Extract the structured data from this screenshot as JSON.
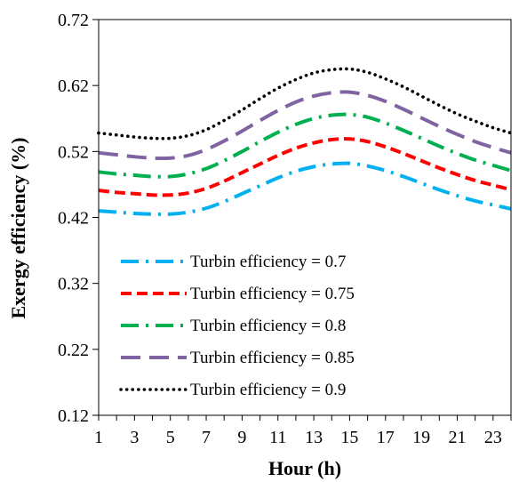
{
  "chart_data": {
    "type": "line",
    "xlabel": "Hour (h)",
    "ylabel": "Exergy efficiency (%)",
    "xlim": [
      1,
      24
    ],
    "ylim": [
      0.12,
      0.72
    ],
    "x_ticks": [
      1,
      3,
      5,
      7,
      9,
      11,
      13,
      15,
      17,
      19,
      21,
      23
    ],
    "y_ticks": [
      0.12,
      0.22,
      0.32,
      0.42,
      0.52,
      0.62,
      0.72
    ],
    "y_tick_labels": [
      "0.12",
      "0.22",
      "0.32",
      "0.42",
      "0.52",
      "0.62",
      "0.72"
    ],
    "grid": false,
    "legend_position": "bottom-left",
    "x": [
      1,
      2,
      3,
      4,
      5,
      6,
      7,
      8,
      9,
      10,
      11,
      12,
      13,
      14,
      15,
      16,
      17,
      18,
      19,
      20,
      21,
      22,
      23,
      24
    ],
    "series": [
      {
        "name": "Turbin efficiency = 0.7",
        "color": "#00B0F0",
        "dash": "long-dash-dot",
        "values": [
          0.43,
          0.428,
          0.426,
          0.425,
          0.425,
          0.428,
          0.434,
          0.444,
          0.456,
          0.468,
          0.48,
          0.49,
          0.497,
          0.501,
          0.502,
          0.498,
          0.491,
          0.482,
          0.472,
          0.462,
          0.453,
          0.445,
          0.439,
          0.433
        ]
      },
      {
        "name": "Turbin efficiency = 0.75",
        "color": "#FF0000",
        "dash": "short-dash",
        "values": [
          0.461,
          0.458,
          0.456,
          0.454,
          0.454,
          0.457,
          0.464,
          0.475,
          0.488,
          0.501,
          0.514,
          0.525,
          0.533,
          0.538,
          0.539,
          0.535,
          0.527,
          0.517,
          0.506,
          0.495,
          0.485,
          0.476,
          0.469,
          0.462
        ]
      },
      {
        "name": "Turbin efficiency = 0.8",
        "color": "#00B050",
        "dash": "long-dash-dot",
        "values": [
          0.489,
          0.486,
          0.484,
          0.482,
          0.482,
          0.486,
          0.494,
          0.506,
          0.52,
          0.535,
          0.549,
          0.561,
          0.57,
          0.575,
          0.576,
          0.572,
          0.563,
          0.552,
          0.54,
          0.528,
          0.517,
          0.507,
          0.499,
          0.491
        ]
      },
      {
        "name": "Turbin efficiency = 0.85",
        "color": "#8064A2",
        "dash": "long-dash",
        "values": [
          0.518,
          0.515,
          0.512,
          0.51,
          0.51,
          0.514,
          0.523,
          0.536,
          0.551,
          0.567,
          0.582,
          0.595,
          0.604,
          0.609,
          0.61,
          0.605,
          0.596,
          0.584,
          0.571,
          0.558,
          0.546,
          0.535,
          0.526,
          0.518
        ]
      },
      {
        "name": "Turbin efficiency = 0.9",
        "color": "#000000",
        "dash": "dotted",
        "values": [
          0.548,
          0.545,
          0.542,
          0.54,
          0.54,
          0.544,
          0.553,
          0.567,
          0.583,
          0.6,
          0.616,
          0.629,
          0.639,
          0.644,
          0.645,
          0.64,
          0.63,
          0.618,
          0.604,
          0.59,
          0.577,
          0.566,
          0.556,
          0.548
        ]
      }
    ]
  }
}
